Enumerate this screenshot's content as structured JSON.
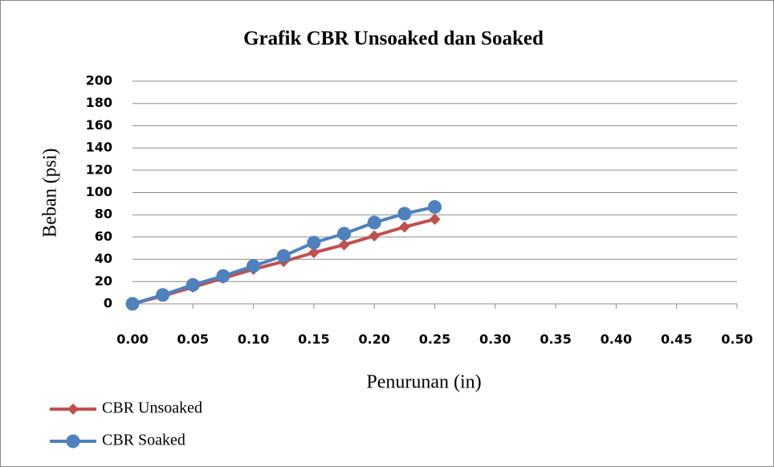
{
  "chart_data": {
    "type": "line",
    "title": "Grafik CBR Unsoaked dan Soaked",
    "x_label": "Penurunan (in)",
    "y_label": "Beban (psi)",
    "x": [
      0,
      0.025,
      0.05,
      0.075,
      0.1,
      0.125,
      0.15,
      0.175,
      0.2,
      0.225,
      0.25
    ],
    "series": [
      {
        "name": "CBR Unsoaked",
        "color": "#c0504d",
        "marker": "diamond",
        "values": [
          0,
          7,
          15,
          23,
          31,
          38,
          46,
          53,
          61,
          69,
          76
        ]
      },
      {
        "name": "CBR Soaked",
        "color": "#4f81bd",
        "marker": "circle",
        "values": [
          0,
          8,
          17,
          25,
          34,
          43,
          55,
          63,
          73,
          81,
          87
        ]
      }
    ],
    "xlim": [
      0,
      0.5
    ],
    "xticks": [
      {
        "value": 0,
        "label": "0.00"
      },
      {
        "value": 0.05,
        "label": "0.05"
      },
      {
        "value": 0.1,
        "label": "0.10"
      },
      {
        "value": 0.15,
        "label": "0.15"
      },
      {
        "value": 0.2,
        "label": "0.20"
      },
      {
        "value": 0.25,
        "label": "0.25"
      },
      {
        "value": 0.3,
        "label": "0.30"
      },
      {
        "value": 0.35,
        "label": "0.35"
      },
      {
        "value": 0.4,
        "label": "0.40"
      },
      {
        "value": 0.45,
        "label": "0.45"
      },
      {
        "value": 0.5,
        "label": "0.50"
      }
    ],
    "ylim": [
      0,
      200
    ],
    "yticks": [
      0,
      20,
      40,
      60,
      80,
      100,
      120,
      140,
      160,
      180,
      200
    ],
    "grid": true,
    "legend": "bottom-left"
  }
}
